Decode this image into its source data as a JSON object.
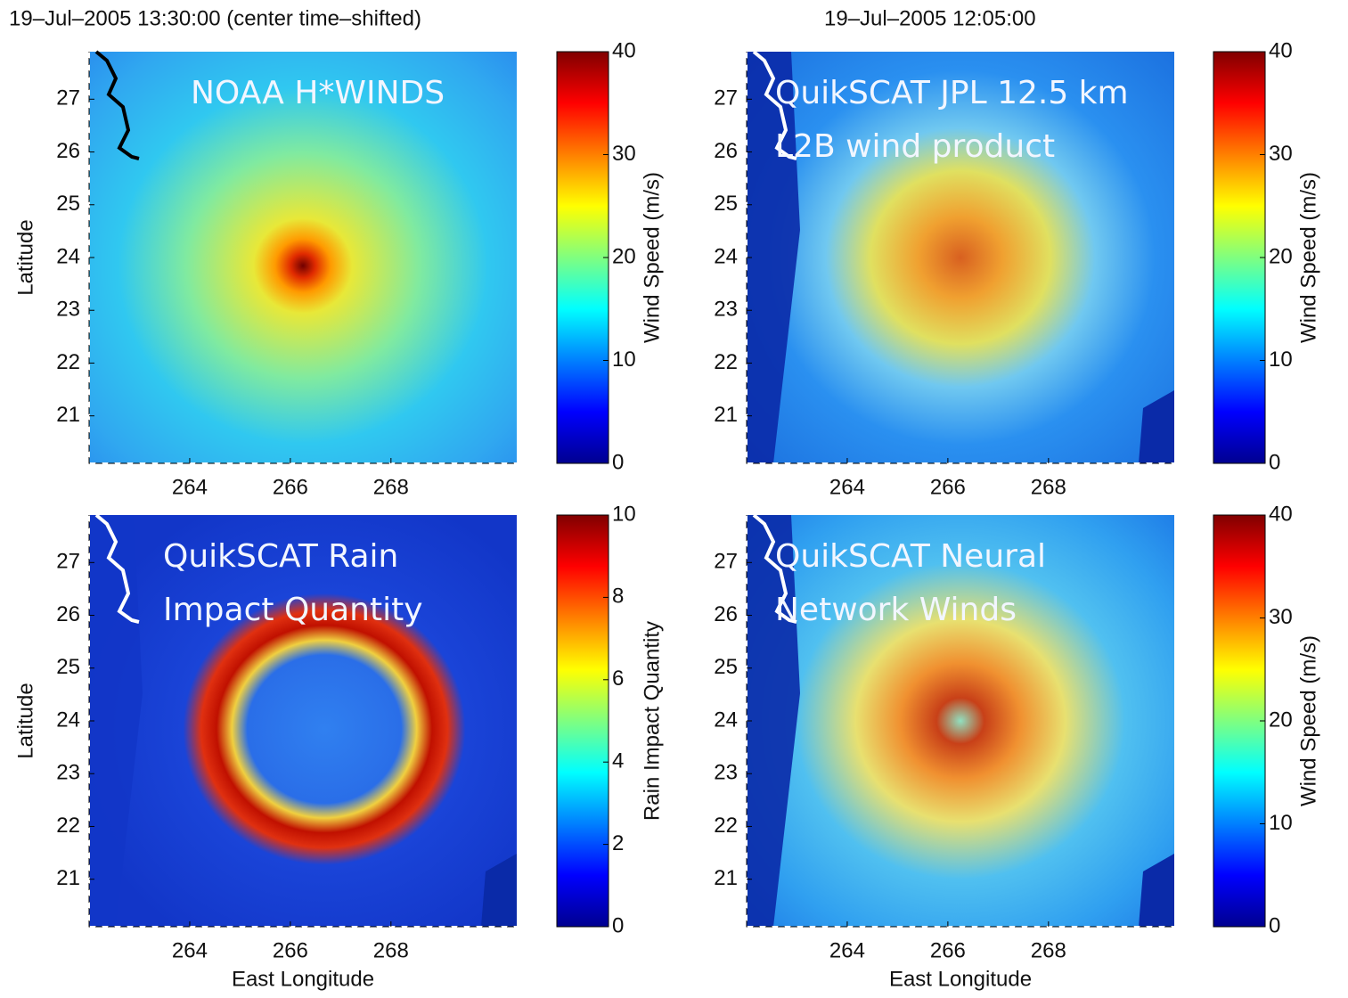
{
  "chart_data": [
    {
      "type": "heatmap",
      "title": "19–Jul–2005 13:30:00 (center time–shifted)",
      "annotation": [
        "NOAA H*WINDS"
      ],
      "ylabel": "Latitude",
      "xlim": [
        262,
        270.5
      ],
      "ylim": [
        20.1,
        27.9
      ],
      "xticks": [
        264,
        266,
        268
      ],
      "yticks": [
        21,
        22,
        23,
        24,
        25,
        26,
        27
      ],
      "colorbar": {
        "label": "Wind Speed (m/s)",
        "lim": [
          0,
          40
        ],
        "ticks": [
          0,
          10,
          20,
          30,
          40
        ]
      }
    },
    {
      "type": "heatmap",
      "title": "19–Jul–2005 12:05:00",
      "annotation": [
        "QuikSCAT JPL 12.5 km",
        "L2B wind product"
      ],
      "xlim": [
        262,
        270.5
      ],
      "ylim": [
        20.1,
        27.9
      ],
      "xticks": [
        264,
        266,
        268
      ],
      "yticks": [
        21,
        22,
        23,
        24,
        25,
        26,
        27
      ],
      "colorbar": {
        "label": "Wind Speed (m/s)",
        "lim": [
          0,
          40
        ],
        "ticks": [
          0,
          10,
          20,
          30,
          40
        ]
      }
    },
    {
      "type": "heatmap",
      "annotation": [
        "QuikSCAT Rain",
        "Impact Quantity"
      ],
      "ylabel": "Latitude",
      "xlabel": "East Longitude",
      "xlim": [
        262,
        270.5
      ],
      "ylim": [
        20.1,
        27.9
      ],
      "xticks": [
        264,
        266,
        268
      ],
      "yticks": [
        21,
        22,
        23,
        24,
        25,
        26,
        27
      ],
      "colorbar": {
        "label": "Rain Impact Quantity",
        "lim": [
          0,
          10
        ],
        "ticks": [
          0,
          2,
          4,
          6,
          8,
          10
        ]
      }
    },
    {
      "type": "heatmap",
      "annotation": [
        "QuikSCAT Neural",
        "Network Winds"
      ],
      "xlabel": "East Longitude",
      "xlim": [
        262,
        270.5
      ],
      "ylim": [
        20.1,
        27.9
      ],
      "xticks": [
        264,
        266,
        268
      ],
      "yticks": [
        21,
        22,
        23,
        24,
        25,
        26,
        27
      ],
      "colorbar": {
        "label": "Wind Speed (m/s)",
        "lim": [
          0,
          40
        ],
        "ticks": [
          0,
          10,
          20,
          30,
          40
        ]
      }
    }
  ]
}
